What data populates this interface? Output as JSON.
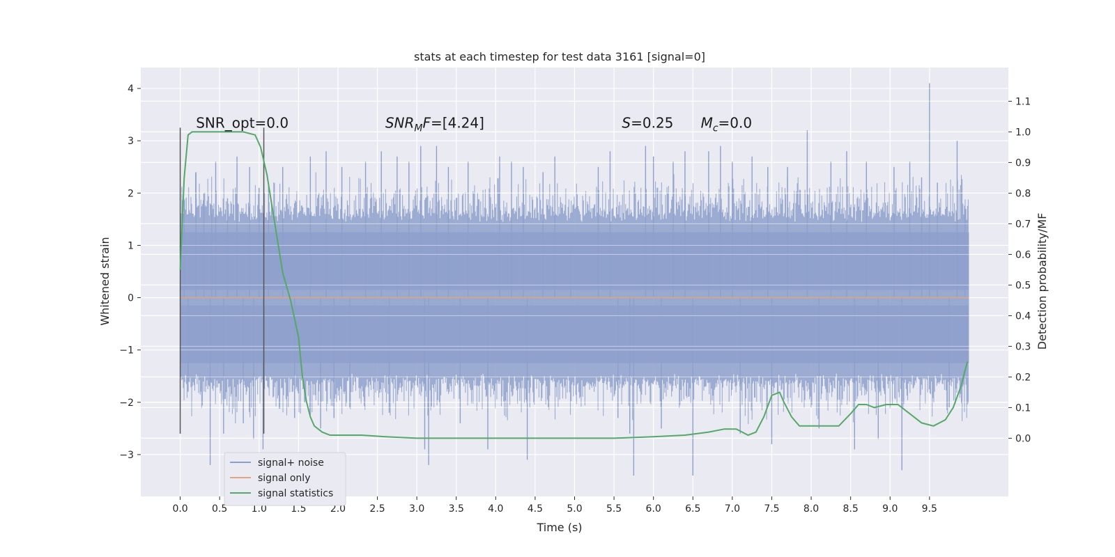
{
  "chart_data": {
    "type": "line",
    "title": "stats at each timestep for test data 3161 [signal=0]",
    "xlabel": "Time (s)",
    "ylabel": "Whitened strain",
    "y2label": "Detection probability/MF",
    "xlim": [
      -0.5,
      10.5
    ],
    "ylim": [
      -3.8,
      4.4
    ],
    "y2lim": [
      -0.19,
      1.21
    ],
    "x_ticks": [
      0.0,
      0.5,
      1.0,
      1.5,
      2.0,
      2.5,
      3.0,
      3.5,
      4.0,
      4.5,
      5.0,
      5.5,
      6.0,
      6.5,
      7.0,
      7.5,
      8.0,
      8.5,
      9.0,
      9.5
    ],
    "x_tick_labels": [
      "0.0",
      "0.5",
      "1.0",
      "1.5",
      "2.0",
      "2.5",
      "3.0",
      "3.5",
      "4.0",
      "4.5",
      "5.0",
      "5.5",
      "6.0",
      "6.5",
      "7.0",
      "7.5",
      "8.0",
      "8.5",
      "9.0",
      "9.5"
    ],
    "y_ticks": [
      -3,
      -2,
      -1,
      0,
      1,
      2,
      3,
      4
    ],
    "y_tick_labels": [
      "−3",
      "−2",
      "−1",
      "0",
      "1",
      "2",
      "3",
      "4"
    ],
    "y2_ticks": [
      0.0,
      0.1,
      0.2,
      0.3,
      0.4,
      0.5,
      0.6,
      0.7,
      0.8,
      0.9,
      1.0,
      1.1
    ],
    "y2_tick_labels": [
      "0.0",
      "0.1",
      "0.2",
      "0.3",
      "0.4",
      "0.5",
      "0.6",
      "0.7",
      "0.8",
      "0.9",
      "1.0",
      "1.1"
    ],
    "grid": true,
    "legend_position": "bottom-left",
    "annotations": [
      {
        "text": "SNR_opt=0.0",
        "x": 0.2,
        "y": 3.3
      },
      {
        "text_base": "SNR",
        "text_sub": "M",
        "text_rest": "F=[4.24]",
        "x": 2.6,
        "y": 3.3
      },
      {
        "text": "S=0.25",
        "x": 5.6,
        "y": 3.3
      },
      {
        "text_base": "M",
        "text_sub": "c",
        "text_rest": "=0.0",
        "x": 6.6,
        "y": 3.3
      }
    ],
    "vertical_lines": [
      {
        "x": 0.0,
        "y_min": -2.6,
        "y_max": 3.25
      },
      {
        "x": 1.06,
        "y_min": -2.6,
        "y_max": 3.25
      }
    ],
    "noise_series": {
      "name": "signal+ noise",
      "color": "#8da0cb",
      "x_start": 0.0,
      "x_end": 10.0,
      "core_low": -1.45,
      "core_high": 1.45,
      "spikes": [
        [
          0.05,
          1.7
        ],
        [
          0.1,
          -1.8
        ],
        [
          0.2,
          2.4
        ],
        [
          0.3,
          2.0
        ],
        [
          0.38,
          -3.2
        ],
        [
          0.4,
          1.6
        ],
        [
          0.45,
          2.6
        ],
        [
          0.55,
          -2.6
        ],
        [
          0.6,
          1.9
        ],
        [
          0.72,
          2.7
        ],
        [
          0.8,
          -2.4
        ],
        [
          0.88,
          2.5
        ],
        [
          0.93,
          -2.7
        ],
        [
          1.0,
          2.1
        ],
        [
          1.05,
          -2.9
        ],
        [
          1.12,
          2.2
        ],
        [
          1.3,
          2.5
        ],
        [
          1.45,
          -2.3
        ],
        [
          1.65,
          2.7
        ],
        [
          1.78,
          -2.5
        ],
        [
          1.85,
          2.8
        ],
        [
          1.95,
          -2.3
        ],
        [
          2.05,
          2.5
        ],
        [
          2.15,
          -2.1
        ],
        [
          2.35,
          2.6
        ],
        [
          2.55,
          2.8
        ],
        [
          2.65,
          -2.2
        ],
        [
          2.75,
          2.7
        ],
        [
          2.9,
          2.6
        ],
        [
          3.05,
          2.9
        ],
        [
          3.1,
          -2.9
        ],
        [
          3.15,
          -3.2
        ],
        [
          3.25,
          2.9
        ],
        [
          3.4,
          2.5
        ],
        [
          3.55,
          -2.4
        ],
        [
          3.65,
          2.6
        ],
        [
          3.9,
          -2.9
        ],
        [
          4.05,
          2.7
        ],
        [
          4.2,
          2.6
        ],
        [
          4.35,
          2.5
        ],
        [
          4.4,
          -3.1
        ],
        [
          4.6,
          2.4
        ],
        [
          4.75,
          2.7
        ],
        [
          4.95,
          1.0
        ],
        [
          5.3,
          2.5
        ],
        [
          5.45,
          2.8
        ],
        [
          5.55,
          -2.3
        ],
        [
          5.7,
          -2.6
        ],
        [
          5.75,
          -3.4
        ],
        [
          5.9,
          2.9
        ],
        [
          6.0,
          2.7
        ],
        [
          6.1,
          -2.5
        ],
        [
          6.25,
          2.6
        ],
        [
          6.4,
          2.8
        ],
        [
          6.5,
          -3.4
        ],
        [
          6.7,
          2.8
        ],
        [
          6.85,
          2.9
        ],
        [
          7.0,
          2.6
        ],
        [
          7.1,
          -2.6
        ],
        [
          7.25,
          2.7
        ],
        [
          7.45,
          2.5
        ],
        [
          7.5,
          -2.8
        ],
        [
          7.7,
          2.5
        ],
        [
          7.95,
          3.2
        ],
        [
          8.1,
          -2.5
        ],
        [
          8.25,
          2.6
        ],
        [
          8.45,
          2.8
        ],
        [
          8.55,
          -2.9
        ],
        [
          8.7,
          2.6
        ],
        [
          8.85,
          -2.7
        ],
        [
          9.05,
          2.5
        ],
        [
          9.15,
          -3.3
        ],
        [
          9.25,
          2.6
        ],
        [
          9.4,
          2.3
        ],
        [
          9.5,
          4.1
        ],
        [
          9.6,
          2.2
        ],
        [
          9.75,
          -2.1
        ],
        [
          9.85,
          3.0
        ],
        [
          9.95,
          1.7
        ]
      ]
    },
    "signal_series": {
      "name": "signal only",
      "color": "#e5a27f",
      "x": [
        0.0,
        10.0
      ],
      "y": [
        0.0,
        0.0
      ]
    },
    "stat_series": {
      "name": "signal statistics",
      "color": "#55a868",
      "x": [
        0.0,
        0.05,
        0.1,
        0.15,
        0.2,
        0.3,
        0.45,
        0.6,
        0.8,
        0.95,
        1.02,
        1.1,
        1.2,
        1.3,
        1.4,
        1.5,
        1.55,
        1.6,
        1.65,
        1.7,
        1.8,
        1.9,
        2.0,
        2.3,
        2.6,
        3.0,
        3.5,
        4.0,
        4.5,
        5.0,
        5.5,
        6.0,
        6.4,
        6.7,
        6.9,
        7.05,
        7.2,
        7.3,
        7.4,
        7.5,
        7.6,
        7.65,
        7.75,
        7.85,
        8.0,
        8.15,
        8.35,
        8.5,
        8.6,
        8.7,
        8.8,
        8.95,
        9.1,
        9.25,
        9.4,
        9.55,
        9.7,
        9.8,
        9.9,
        9.98
      ],
      "y": [
        0.55,
        0.85,
        0.99,
        1.0,
        1.0,
        1.0,
        1.0,
        1.0,
        1.0,
        0.99,
        0.95,
        0.86,
        0.7,
        0.54,
        0.45,
        0.33,
        0.2,
        0.12,
        0.07,
        0.04,
        0.02,
        0.01,
        0.01,
        0.01,
        0.005,
        0.0,
        0.0,
        0.0,
        0.0,
        0.0,
        0.0,
        0.005,
        0.01,
        0.02,
        0.03,
        0.03,
        0.01,
        0.02,
        0.07,
        0.14,
        0.15,
        0.12,
        0.07,
        0.04,
        0.04,
        0.04,
        0.04,
        0.08,
        0.11,
        0.11,
        0.1,
        0.11,
        0.11,
        0.08,
        0.05,
        0.04,
        0.06,
        0.1,
        0.17,
        0.25
      ]
    },
    "legend": [
      {
        "label": "signal+ noise",
        "color": "#8da0cb"
      },
      {
        "label": "signal only",
        "color": "#e5a27f"
      },
      {
        "label": "signal statistics",
        "color": "#55a868"
      }
    ]
  }
}
